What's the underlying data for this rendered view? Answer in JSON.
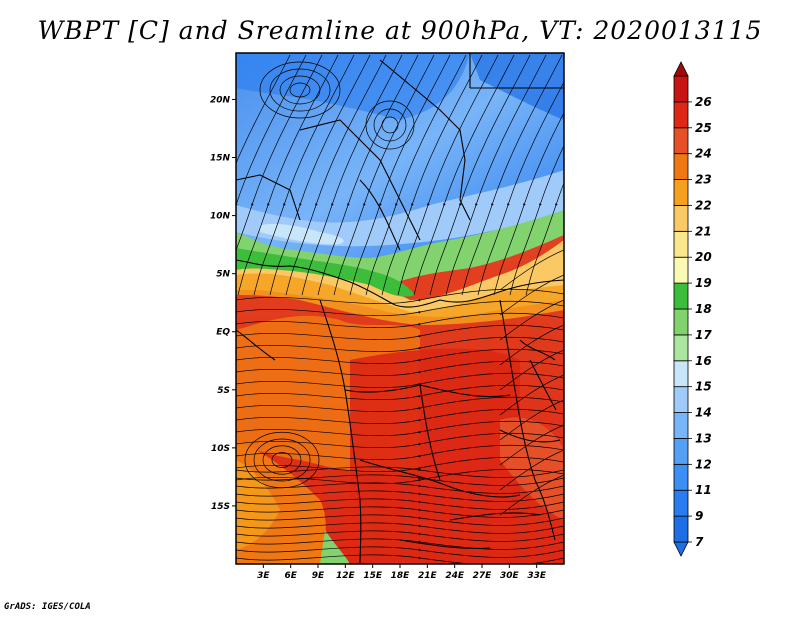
{
  "title": "WBPT [C] and Sreamline at 900hPa, VT: 2020013115",
  "footer": "GrADS: IGES/COLA",
  "map": {
    "lon_range": [
      0,
      36
    ],
    "lat_range": [
      -20,
      24
    ],
    "lat_ticks": [
      {
        "value": 20,
        "label": "20N"
      },
      {
        "value": 15,
        "label": "15N"
      },
      {
        "value": 10,
        "label": "10N"
      },
      {
        "value": 5,
        "label": "5N"
      },
      {
        "value": 0,
        "label": "EQ"
      },
      {
        "value": -5,
        "label": "5S"
      },
      {
        "value": -10,
        "label": "10S"
      },
      {
        "value": -15,
        "label": "15S"
      }
    ],
    "lon_ticks": [
      {
        "value": 3,
        "label": "3E"
      },
      {
        "value": 6,
        "label": "6E"
      },
      {
        "value": 9,
        "label": "9E"
      },
      {
        "value": 12,
        "label": "12E"
      },
      {
        "value": 15,
        "label": "15E"
      },
      {
        "value": 18,
        "label": "18E"
      },
      {
        "value": 21,
        "label": "21E"
      },
      {
        "value": 24,
        "label": "24E"
      },
      {
        "value": 27,
        "label": "27E"
      },
      {
        "value": 30,
        "label": "30E"
      },
      {
        "value": 33,
        "label": "33E"
      }
    ]
  },
  "colorbar": {
    "levels": [
      {
        "label": "7",
        "color": "#1e6ee6"
      },
      {
        "label": "9",
        "color": "#2a7df0"
      },
      {
        "label": "11",
        "color": "#3c8ff5"
      },
      {
        "label": "12",
        "color": "#55a0f5"
      },
      {
        "label": "13",
        "color": "#78b4f8"
      },
      {
        "label": "14",
        "color": "#a0cafa"
      },
      {
        "label": "15",
        "color": "#c8e6fa"
      },
      {
        "label": "16",
        "color": "#aae6a0"
      },
      {
        "label": "17",
        "color": "#82d26e"
      },
      {
        "label": "18",
        "color": "#3cbe3c"
      },
      {
        "label": "19",
        "color": "#fafab4"
      },
      {
        "label": "20",
        "color": "#fae68c"
      },
      {
        "label": "21",
        "color": "#fac864"
      },
      {
        "label": "22",
        "color": "#f5a01e"
      },
      {
        "label": "23",
        "color": "#f07814"
      },
      {
        "label": "24",
        "color": "#e65028"
      },
      {
        "label": "25",
        "color": "#dc2814"
      },
      {
        "label": "26",
        "color": "#c81414"
      }
    ],
    "below_color": "#1e6ee6",
    "above_color": "#a00a0a"
  }
}
